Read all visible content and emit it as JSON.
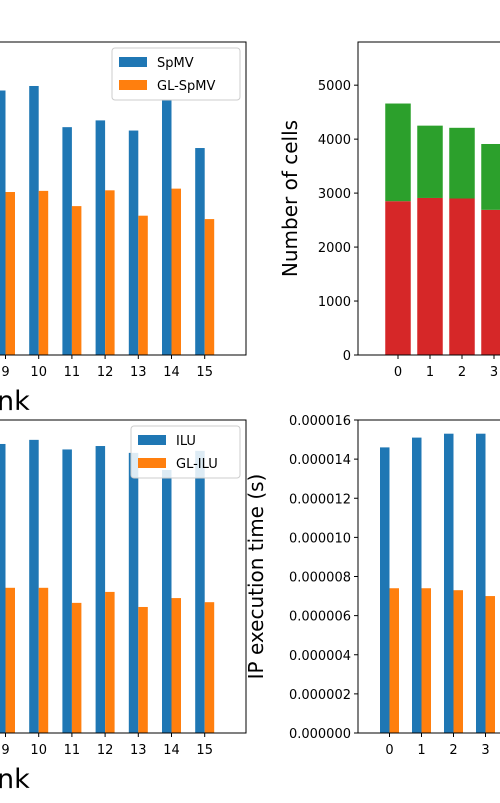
{
  "colors": {
    "blue": "#1f77b4",
    "orange": "#ff7f0e",
    "green": "#2ca02c",
    "red": "#d62728"
  },
  "chart_data": [
    {
      "id": "spmv",
      "type": "bar",
      "categories": [
        "9",
        "10",
        "11",
        "12",
        "13",
        "14",
        "15"
      ],
      "series": [
        {
          "name": "SpMV",
          "color": "#1f77b4",
          "values": [
            4.69,
            4.77,
            4.04,
            4.16,
            3.98,
            4.52,
            3.67
          ]
        },
        {
          "name": "GL-SpMV",
          "color": "#ff7f0e",
          "values": [
            2.89,
            2.91,
            2.64,
            2.92,
            2.47,
            2.95,
            2.41
          ]
        }
      ],
      "xlabel_visible": "nk",
      "ylim": [
        0,
        5.55
      ],
      "legend": "upper-right"
    },
    {
      "id": "cells",
      "type": "bar",
      "stacked": true,
      "categories": [
        "0",
        "1",
        "2",
        "3"
      ],
      "yticks": [
        "0",
        "1000",
        "2000",
        "3000",
        "4000",
        "5000"
      ],
      "ylabel": "Number of cells",
      "series": [
        {
          "color": "#d62728",
          "values": [
            2850,
            2910,
            2900,
            2690
          ]
        },
        {
          "color": "#2ca02c",
          "values": [
            1810,
            1340,
            1310,
            1220
          ]
        }
      ],
      "ylim": [
        0,
        5800
      ]
    },
    {
      "id": "ilu",
      "type": "bar",
      "categories": [
        "9",
        "10",
        "11",
        "12",
        "13",
        "14",
        "15"
      ],
      "series": [
        {
          "name": "ILU",
          "color": "#1f77b4",
          "values": [
            4.22,
            4.28,
            4.14,
            4.19,
            4.09,
            3.84,
            4.12
          ]
        },
        {
          "name": "GL-ILU",
          "color": "#ff7f0e",
          "values": [
            2.12,
            2.12,
            1.9,
            2.06,
            1.84,
            1.97,
            1.91
          ]
        }
      ],
      "xlabel_visible": "nk",
      "ylim": [
        0,
        4.57
      ],
      "legend": "upper-right"
    },
    {
      "id": "ip",
      "type": "bar",
      "categories": [
        "0",
        "1",
        "2",
        "3"
      ],
      "yticks": [
        "0.000000",
        "0.000002",
        "0.000004",
        "0.000006",
        "0.000008",
        "0.000010",
        "0.000012",
        "0.000014",
        "0.000016"
      ],
      "ylabel": "IP execution time (s)",
      "series": [
        {
          "color": "#1f77b4",
          "values": [
            1.46e-05,
            1.51e-05,
            1.53e-05,
            1.53e-05
          ]
        },
        {
          "color": "#ff7f0e",
          "values": [
            7.4e-06,
            7.4e-06,
            7.3e-06,
            7e-06
          ]
        }
      ],
      "ylim": [
        0,
        1.6e-05
      ]
    }
  ]
}
